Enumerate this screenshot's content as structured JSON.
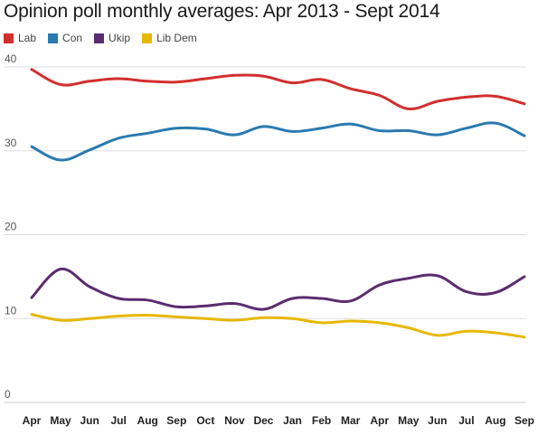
{
  "chart_data": {
    "type": "line",
    "title": "Opinion poll monthly averages: Apr 2013 - Sept 2014",
    "xlabel": "",
    "ylabel": "",
    "ylim": [
      0,
      40
    ],
    "yticks": [
      0,
      10,
      20,
      30,
      40
    ],
    "grid": true,
    "legend_position": "top-left",
    "categories": [
      "Apr",
      "May",
      "Jun",
      "Jul",
      "Aug",
      "Sep",
      "Oct",
      "Nov",
      "Dec",
      "Jan",
      "Feb",
      "Mar",
      "Apr",
      "May",
      "Jun",
      "Jul",
      "Aug",
      "Sep"
    ],
    "series": [
      {
        "name": "Lab",
        "color": "#d32f2f",
        "values": [
          39.7,
          37.9,
          38.3,
          38.6,
          38.3,
          38.2,
          38.6,
          39.0,
          38.9,
          38.1,
          38.5,
          37.4,
          36.6,
          35.0,
          35.9,
          36.4,
          36.5,
          35.6
        ]
      },
      {
        "name": "Con",
        "color": "#2a7ab0",
        "values": [
          30.5,
          28.9,
          30.1,
          31.5,
          32.1,
          32.7,
          32.6,
          31.9,
          32.9,
          32.3,
          32.7,
          33.2,
          32.4,
          32.4,
          31.9,
          32.7,
          33.3,
          31.8
        ]
      },
      {
        "name": "Ukip",
        "color": "#5b2c6f",
        "values": [
          12.5,
          15.9,
          13.8,
          12.4,
          12.2,
          11.4,
          11.5,
          11.8,
          11.1,
          12.4,
          12.4,
          12.1,
          14.0,
          14.8,
          15.1,
          13.2,
          13.1,
          15.0
        ]
      },
      {
        "name": "Lib Dem",
        "color": "#e6b800",
        "values": [
          10.5,
          9.8,
          10.0,
          10.3,
          10.4,
          10.2,
          10.0,
          9.8,
          10.1,
          10.0,
          9.5,
          9.7,
          9.5,
          8.9,
          8.0,
          8.5,
          8.3,
          7.8
        ]
      }
    ]
  }
}
